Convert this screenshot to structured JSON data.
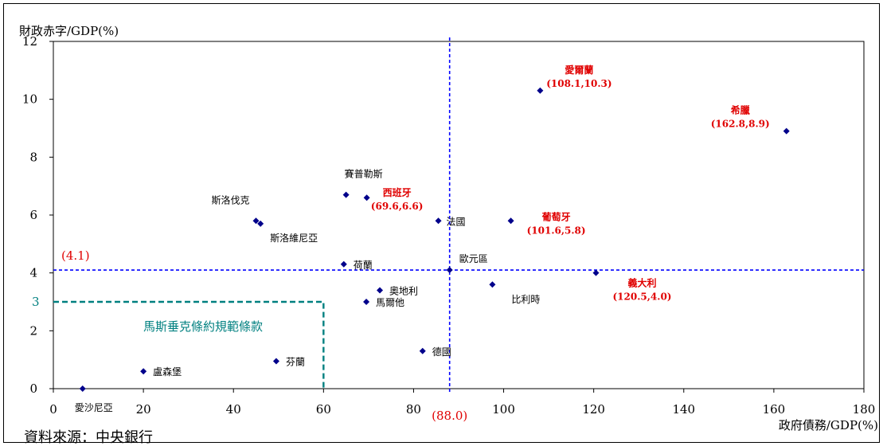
{
  "chart_data": {
    "type": "scatter",
    "ylabel": "財政赤字/GDP(%)",
    "xlabel": "政府債務/GDP(%)",
    "xlim": [
      0,
      180
    ],
    "ylim": [
      0,
      12
    ],
    "xticks": [
      "0",
      "20",
      "40",
      "60",
      "80",
      "100",
      "120",
      "140",
      "160",
      "180"
    ],
    "yticks": [
      "0",
      "2",
      "4",
      "6",
      "8",
      "10",
      "12"
    ],
    "point_color": "#00008b",
    "points": [
      {
        "name": "愛沙尼亞",
        "x": 6.5,
        "y": 0.0,
        "coords": "",
        "highlight": false
      },
      {
        "name": "盧森堡",
        "x": 20.0,
        "y": 0.6,
        "coords": "",
        "highlight": false
      },
      {
        "name": "芬蘭",
        "x": 49.5,
        "y": 0.95,
        "coords": "",
        "highlight": false
      },
      {
        "name": "斯洛伐克",
        "x": 45.0,
        "y": 5.8,
        "coords": "",
        "highlight": false
      },
      {
        "name": "斯洛維尼亞",
        "x": 46.0,
        "y": 5.7,
        "coords": "",
        "highlight": false
      },
      {
        "name": "賽普勒斯",
        "x": 65.0,
        "y": 6.7,
        "coords": "",
        "highlight": false
      },
      {
        "name": "西班牙",
        "x": 69.6,
        "y": 6.6,
        "coords": "(69.6,6.6)",
        "highlight": true
      },
      {
        "name": "荷蘭",
        "x": 64.5,
        "y": 4.3,
        "coords": "",
        "highlight": false
      },
      {
        "name": "奧地利",
        "x": 72.5,
        "y": 3.4,
        "coords": "",
        "highlight": false
      },
      {
        "name": "馬爾他",
        "x": 69.5,
        "y": 3.0,
        "coords": "",
        "highlight": false
      },
      {
        "name": "德國",
        "x": 82.0,
        "y": 1.3,
        "coords": "",
        "highlight": false
      },
      {
        "name": "法國",
        "x": 85.5,
        "y": 5.8,
        "coords": "",
        "highlight": false
      },
      {
        "name": "歐元區",
        "x": 88.0,
        "y": 4.1,
        "coords": "",
        "highlight": false
      },
      {
        "name": "比利時",
        "x": 97.5,
        "y": 3.6,
        "coords": "",
        "highlight": false
      },
      {
        "name": "葡萄牙",
        "x": 101.6,
        "y": 5.8,
        "coords": "(101.6,5.8)",
        "highlight": true
      },
      {
        "name": "愛爾蘭",
        "x": 108.1,
        "y": 10.3,
        "coords": "(108.1,10.3)",
        "highlight": true
      },
      {
        "name": "義大利",
        "x": 120.5,
        "y": 4.0,
        "coords": "(120.5,4.0)",
        "highlight": true
      },
      {
        "name": "希臘",
        "x": 162.8,
        "y": 8.9,
        "coords": "(162.8,8.9)",
        "highlight": true
      }
    ],
    "reference_lines": {
      "euro_area_x": 88.0,
      "euro_area_x_label": "(88.0)",
      "euro_area_y": 4.1,
      "euro_area_y_label": "(4.1)",
      "line_color": "#0000ff",
      "maastricht_x": 60,
      "maastricht_y": 3,
      "maastricht_y_label": "3",
      "maastricht_label": "馬斯垂克條約規範條款",
      "maastricht_color": "#008080"
    }
  },
  "source": "資料來源：中央銀行"
}
